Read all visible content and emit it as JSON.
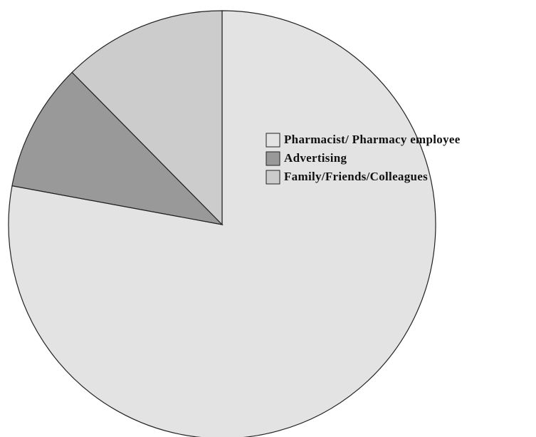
{
  "chart_data": {
    "type": "pie",
    "categories": [
      "Pharmacist/ Pharmacy employee",
      "Advertising",
      "Family/Friends/Colleagues"
    ],
    "values": [
      77.9,
      9.7,
      12.4
    ],
    "colors": [
      "#e3e3e3",
      "#999999",
      "#cccccc"
    ],
    "legend": "right"
  }
}
